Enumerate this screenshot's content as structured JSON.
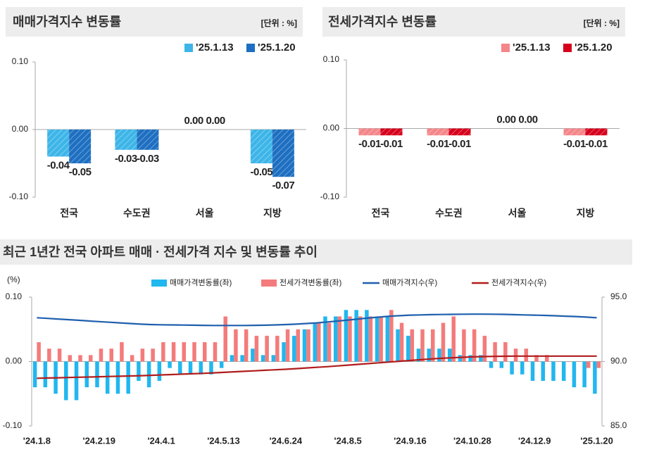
{
  "chart_data": [
    {
      "type": "bar",
      "title": "매매가격지수 변동률",
      "unit_label": "[단위 : %]",
      "categories": [
        "전국",
        "수도권",
        "서울",
        "지방"
      ],
      "ylim": [
        -0.1,
        0.1
      ],
      "yticks": [
        {
          "value": -0.1,
          "label": "-0.10"
        },
        {
          "value": 0,
          "label": "0.00"
        },
        {
          "value": 0.1,
          "label": "0.10"
        }
      ],
      "hatch": true,
      "series": [
        {
          "name": "'25.1.13",
          "color": "#3db5e8",
          "values": [
            -0.04,
            -0.03,
            0,
            -0.05
          ],
          "value_labels": [
            "-0.04",
            "-0.03",
            "0.00",
            "-0.05"
          ]
        },
        {
          "name": "'25.1.20",
          "color": "#1e6fc1",
          "values": [
            -0.05,
            -0.03,
            0,
            -0.07
          ],
          "value_labels": [
            "-0.05",
            "-0.03",
            "0.00",
            "-0.07"
          ]
        }
      ]
    },
    {
      "type": "bar",
      "title": "전세가격지수 변동률",
      "unit_label": "[단위 : %]",
      "categories": [
        "전국",
        "수도권",
        "서울",
        "지방"
      ],
      "ylim": [
        -0.1,
        0.1
      ],
      "yticks": [
        {
          "value": -0.1,
          "label": "-0.10"
        },
        {
          "value": 0,
          "label": "0.00"
        },
        {
          "value": 0.1,
          "label": "0.10"
        }
      ],
      "hatch": true,
      "series": [
        {
          "name": "'25.1.13",
          "color": "#f4868a",
          "values": [
            -0.01,
            -0.01,
            0,
            -0.01
          ],
          "value_labels": [
            "-0.01",
            "-0.01",
            "0.00",
            "-0.01"
          ]
        },
        {
          "name": "'25.1.20",
          "color": "#d6001c",
          "values": [
            -0.01,
            -0.01,
            0,
            -0.01
          ],
          "value_labels": [
            "-0.01",
            "-0.01",
            "0.00",
            "-0.01"
          ]
        }
      ]
    },
    {
      "type": "combo",
      "title": "최근 1년간 전국 아파트 매매 · 전세가격 지수 및 변동률 추이",
      "ylabel": "(%)",
      "categories": [
        "'24.1.8",
        null,
        null,
        null,
        null,
        null,
        "'24.2.19",
        null,
        null,
        null,
        null,
        null,
        "'24.4.1",
        null,
        null,
        null,
        null,
        null,
        "'24.5.13",
        null,
        null,
        null,
        null,
        null,
        "'24.6.24",
        null,
        null,
        null,
        null,
        null,
        "'24.8.5",
        null,
        null,
        null,
        null,
        null,
        "'24.9.16",
        null,
        null,
        null,
        null,
        null,
        "'24.10.28",
        null,
        null,
        null,
        null,
        null,
        "'24.12.9",
        null,
        null,
        null,
        null,
        null,
        "'25.1.20"
      ],
      "ylim": [
        -0.1,
        0.1
      ],
      "yticks": [
        {
          "value": -0.1,
          "label": "-0.10"
        },
        {
          "value": 0,
          "label": "0.00"
        },
        {
          "value": 0.1,
          "label": "0.10"
        }
      ],
      "y2lim": [
        85,
        95
      ],
      "y2ticks": [
        {
          "value": 85,
          "label": "85.0"
        },
        {
          "value": 90,
          "label": "90.0"
        },
        {
          "value": 95,
          "label": "95.0"
        }
      ],
      "series": [
        {
          "name": "매매가격변동률(좌)",
          "kind": "bar",
          "color": "#21b7ef",
          "values": [
            -0.04,
            -0.04,
            -0.05,
            -0.06,
            -0.06,
            -0.04,
            -0.04,
            -0.05,
            -0.05,
            -0.05,
            -0.03,
            -0.04,
            -0.03,
            -0.01,
            -0.02,
            -0.02,
            -0.02,
            -0.02,
            -0.01,
            0.01,
            0.01,
            0.02,
            0.01,
            0.01,
            0.03,
            0.04,
            0.05,
            0.06,
            0.07,
            0.07,
            0.08,
            0.08,
            0.08,
            0.07,
            0.07,
            0.05,
            0.04,
            0.02,
            0.02,
            0.02,
            0.02,
            0.01,
            0.01,
            0.01,
            -0.01,
            -0.01,
            -0.02,
            -0.02,
            -0.03,
            -0.03,
            -0.03,
            -0.03,
            -0.04,
            -0.04,
            -0.05
          ]
        },
        {
          "name": "전세가격변동률(좌)",
          "kind": "bar",
          "color": "#f47b7b",
          "values": [
            0.03,
            0.02,
            0.02,
            0.01,
            0.01,
            0.01,
            0.02,
            0.02,
            0.03,
            0.01,
            0.02,
            0.02,
            0.03,
            0.03,
            0.03,
            0.03,
            0.03,
            0.03,
            0.07,
            0.05,
            0.05,
            0.04,
            0.04,
            0.04,
            0.05,
            0.05,
            0.05,
            0.06,
            0.06,
            0.07,
            0.07,
            0.07,
            0.07,
            0.07,
            0.08,
            0.06,
            0.05,
            0.05,
            0.05,
            0.06,
            0.07,
            0.05,
            0.05,
            0.04,
            0.03,
            0.03,
            0.02,
            0.02,
            0.01,
            0.01,
            0,
            0,
            0,
            -0.01,
            -0.01
          ]
        },
        {
          "name": "매매가격지수(우)",
          "kind": "line",
          "axis": "y2",
          "color": "#1f5fae",
          "values": [
            93.4,
            93.35,
            93.3,
            93.25,
            93.2,
            93.15,
            93.1,
            93.05,
            93.0,
            92.95,
            92.9,
            92.87,
            92.85,
            92.84,
            92.83,
            92.82,
            92.81,
            92.8,
            92.8,
            92.8,
            92.8,
            92.81,
            92.82,
            92.84,
            92.87,
            92.9,
            92.95,
            93.0,
            93.07,
            93.14,
            93.22,
            93.3,
            93.38,
            93.45,
            93.52,
            93.56,
            93.6,
            93.62,
            93.64,
            93.65,
            93.66,
            93.67,
            93.68,
            93.68,
            93.67,
            93.66,
            93.64,
            93.62,
            93.6,
            93.58,
            93.55,
            93.52,
            93.49,
            93.45,
            93.4
          ]
        },
        {
          "name": "전세가격지수(우)",
          "kind": "line",
          "axis": "y2",
          "color": "#b01c1c",
          "values": [
            88.7,
            88.72,
            88.74,
            88.76,
            88.78,
            88.8,
            88.82,
            88.84,
            88.86,
            88.88,
            88.9,
            88.93,
            88.96,
            88.99,
            89.02,
            89.05,
            89.08,
            89.12,
            89.16,
            89.2,
            89.24,
            89.28,
            89.32,
            89.36,
            89.4,
            89.45,
            89.5,
            89.55,
            89.6,
            89.66,
            89.72,
            89.78,
            89.84,
            89.9,
            89.96,
            90.02,
            90.08,
            90.14,
            90.2,
            90.25,
            90.29,
            90.33,
            90.36,
            90.38,
            90.4,
            90.41,
            90.42,
            90.42,
            90.42,
            90.42,
            90.42,
            90.42,
            90.42,
            90.42,
            90.42
          ]
        }
      ]
    }
  ]
}
